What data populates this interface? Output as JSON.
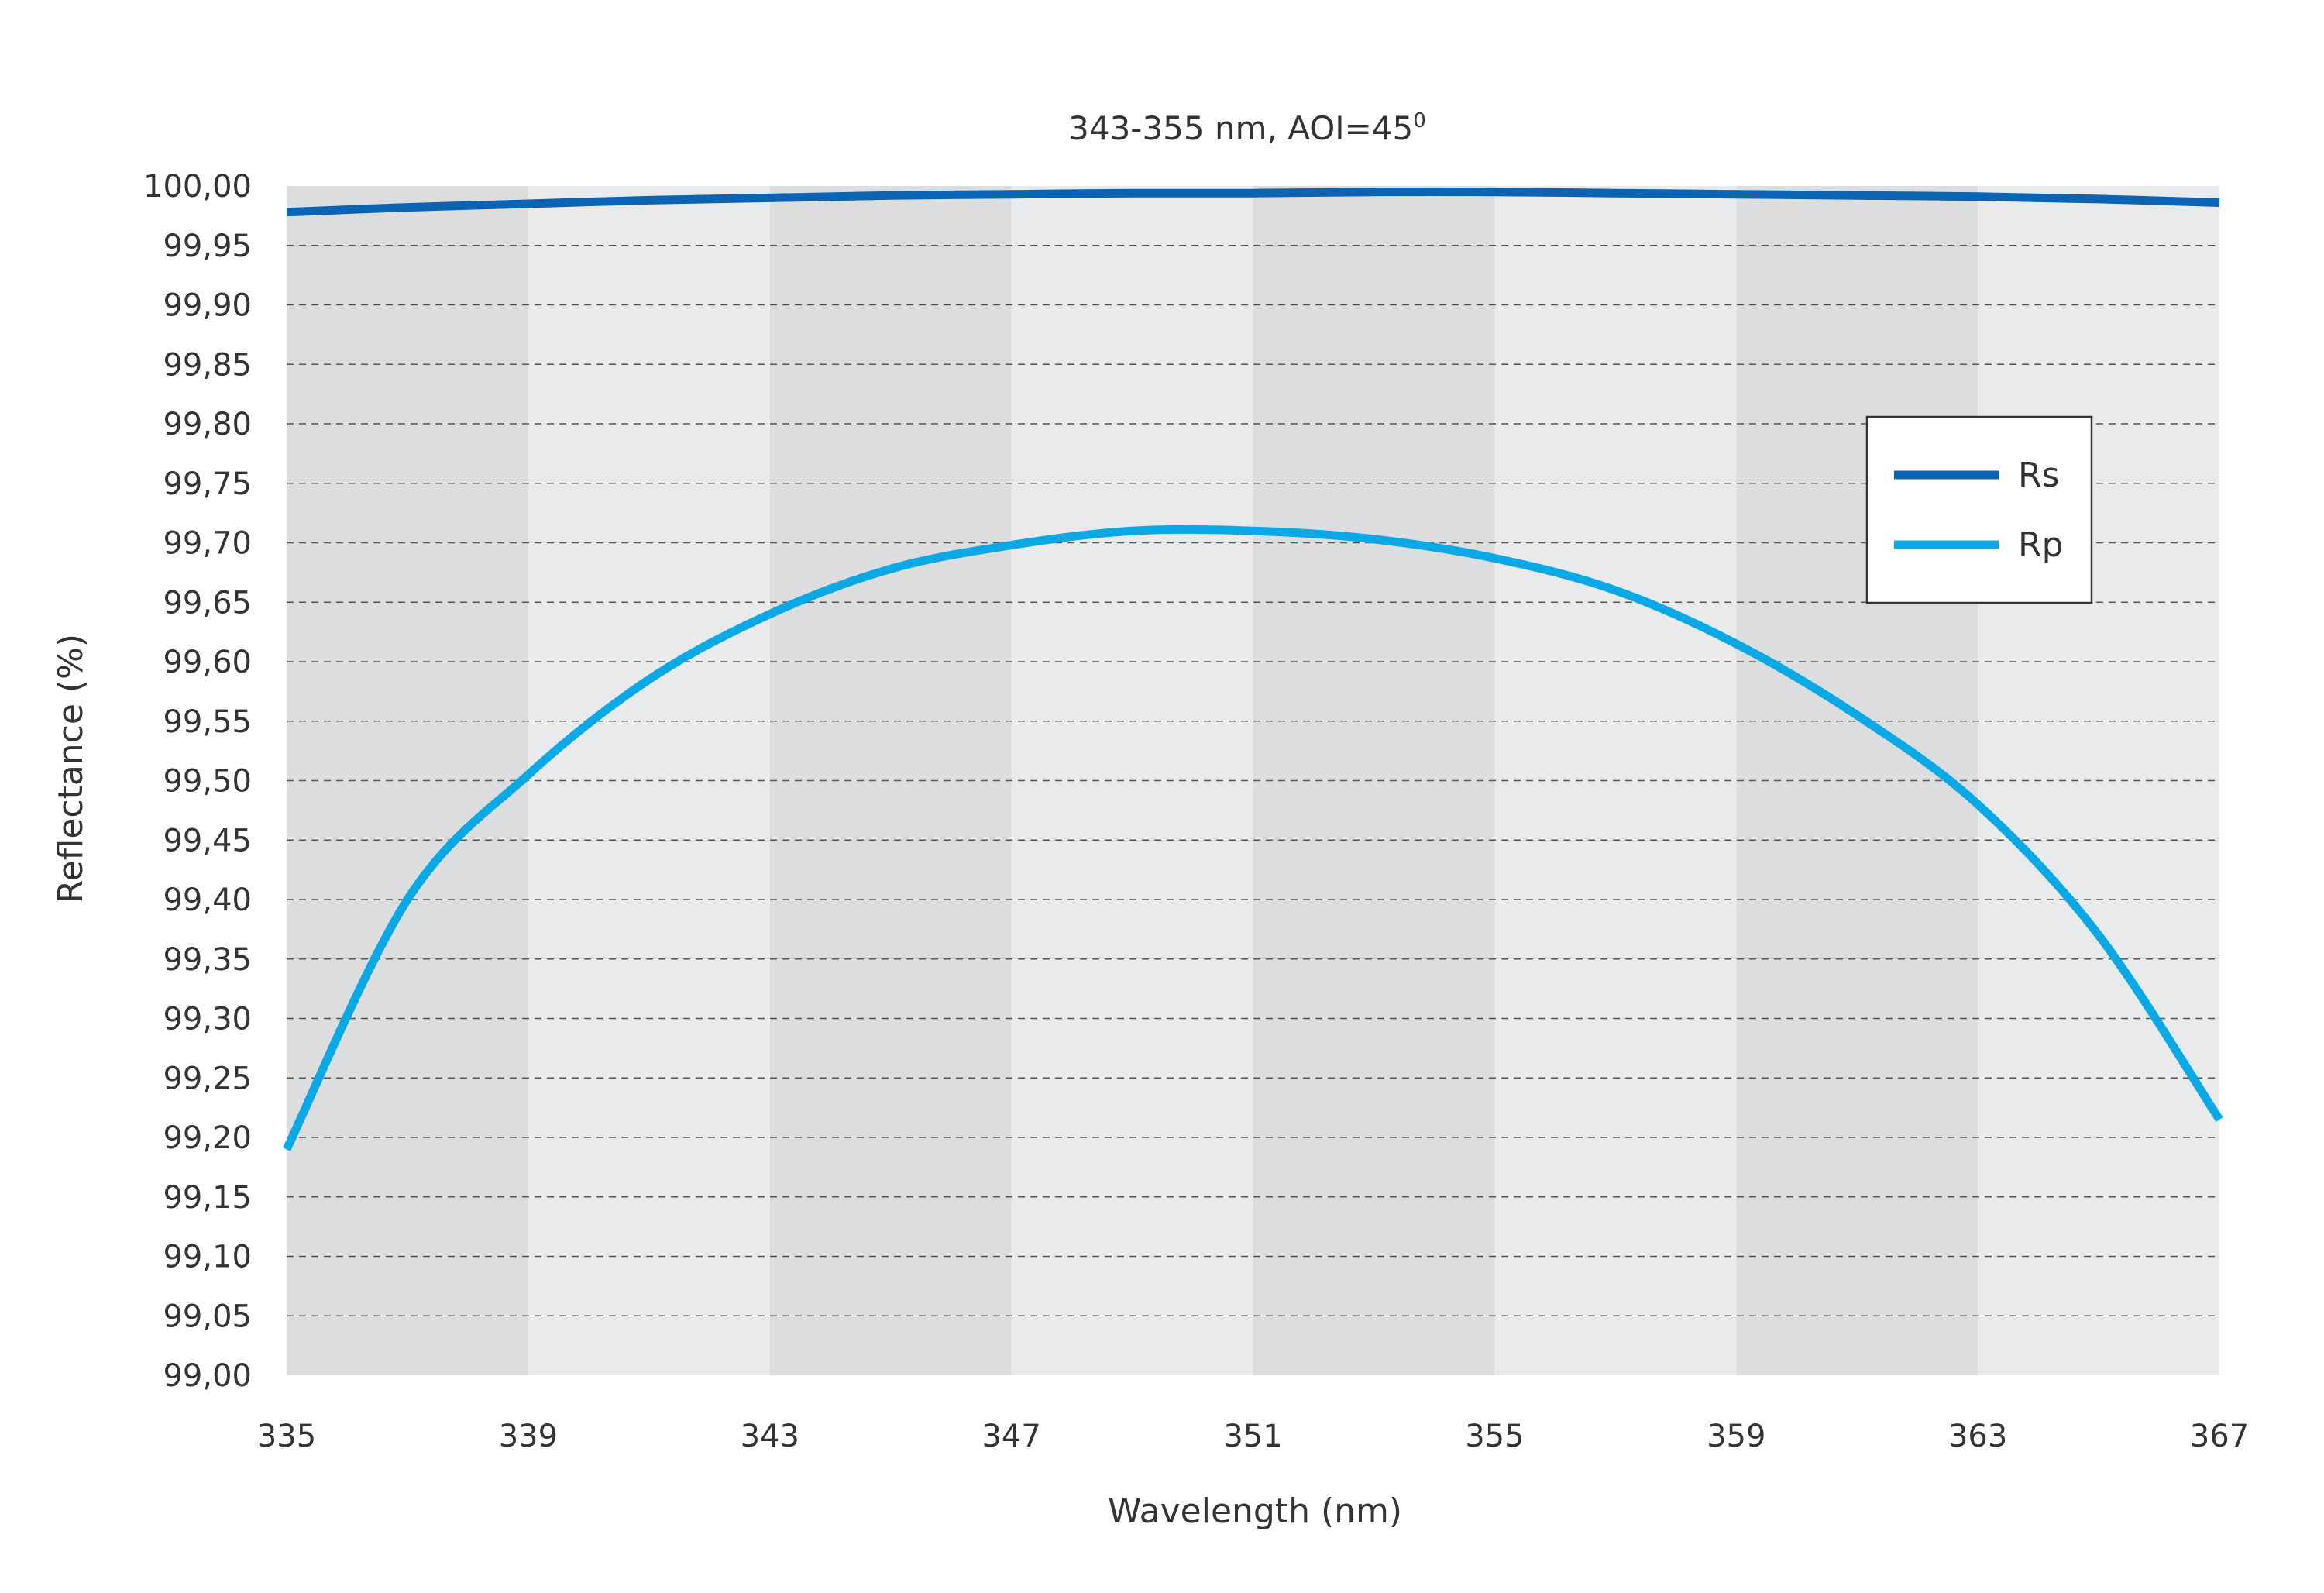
{
  "chart_data": {
    "type": "line",
    "title": "343-355 nm, AOI=45",
    "title_superscript": "0",
    "xlabel": "Wavelength (nm)",
    "ylabel": "Reflectance (%)",
    "xlim": [
      335,
      367
    ],
    "ylim": [
      99.0,
      100.0
    ],
    "x_ticks": [
      "335",
      "339",
      "343",
      "347",
      "351",
      "355",
      "359",
      "363",
      "367"
    ],
    "y_ticks": [
      "99,00",
      "99,05",
      "99,10",
      "99,15",
      "99,20",
      "99,25",
      "99,30",
      "99,35",
      "99,40",
      "99,45",
      "99,50",
      "99,55",
      "99,60",
      "99,65",
      "99,70",
      "99,75",
      "99,80",
      "99,85",
      "99,90",
      "99,95",
      "100,00"
    ],
    "grid": "horizontal dashed",
    "background": "alternating grey bands every 4 nm",
    "legend_position": "upper right",
    "x": [
      335,
      337,
      339,
      341,
      343,
      345,
      347,
      349,
      351,
      353,
      355,
      357,
      359,
      361,
      363,
      365,
      367
    ],
    "series": [
      {
        "name": "Rs",
        "color": "#0a63b3",
        "values": [
          99.978,
          99.982,
          99.985,
          99.988,
          99.99,
          99.992,
          99.993,
          99.994,
          99.994,
          99.995,
          99.995,
          99.994,
          99.993,
          99.992,
          99.991,
          99.989,
          99.986
        ]
      },
      {
        "name": "Rp",
        "color": "#0aa9e6",
        "values": [
          99.19,
          99.4,
          99.505,
          99.585,
          99.64,
          99.678,
          99.698,
          99.71,
          99.71,
          99.703,
          99.687,
          99.66,
          99.615,
          99.555,
          99.48,
          99.37,
          99.215
        ]
      }
    ]
  }
}
